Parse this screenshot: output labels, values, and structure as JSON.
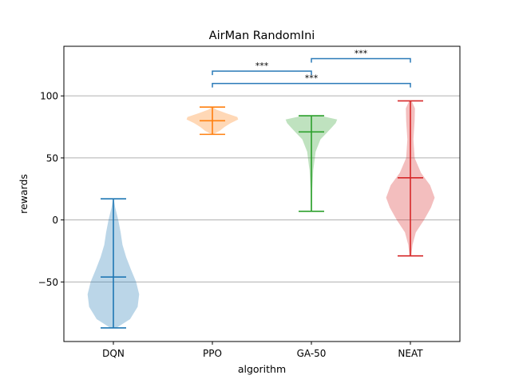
{
  "chart_data": {
    "type": "violin",
    "title": "AirMan RandomIni",
    "xlabel": "algorithm",
    "ylabel": "rewards",
    "ylim": [
      -98,
      140
    ],
    "yticks": [
      -50,
      0,
      50,
      100
    ],
    "grid": "y",
    "categories": [
      "DQN",
      "PPO",
      "GA-50",
      "NEAT"
    ],
    "colors": [
      "#1f77b4",
      "#ff7f0e",
      "#2ca02c",
      "#d62728"
    ],
    "series": [
      {
        "min": -87,
        "max": 17,
        "median": -46,
        "profile": [
          [
            -87,
            0.1
          ],
          [
            -80,
            0.55
          ],
          [
            -70,
            0.8
          ],
          [
            -60,
            0.85
          ],
          [
            -50,
            0.75
          ],
          [
            -40,
            0.58
          ],
          [
            -30,
            0.42
          ],
          [
            -20,
            0.3
          ],
          [
            -10,
            0.24
          ],
          [
            0,
            0.16
          ],
          [
            10,
            0.06
          ],
          [
            17,
            0.01
          ]
        ]
      },
      {
        "min": 69,
        "max": 91,
        "median": 80,
        "profile": [
          [
            69,
            0.02
          ],
          [
            72,
            0.25
          ],
          [
            75,
            0.4
          ],
          [
            78,
            0.6
          ],
          [
            81,
            0.85
          ],
          [
            83,
            0.82
          ],
          [
            86,
            0.45
          ],
          [
            89,
            0.12
          ],
          [
            91,
            0.03
          ]
        ]
      },
      {
        "min": 7,
        "max": 84,
        "median": 71,
        "profile": [
          [
            7,
            0.02
          ],
          [
            25,
            0.03
          ],
          [
            40,
            0.06
          ],
          [
            55,
            0.14
          ],
          [
            65,
            0.3
          ],
          [
            70,
            0.5
          ],
          [
            74,
            0.65
          ],
          [
            78,
            0.8
          ],
          [
            81,
            0.85
          ],
          [
            84,
            0.3
          ]
        ]
      },
      {
        "min": -29,
        "max": 96,
        "median": 34,
        "profile": [
          [
            -29,
            0.03
          ],
          [
            -20,
            0.07
          ],
          [
            -10,
            0.18
          ],
          [
            0,
            0.45
          ],
          [
            10,
            0.68
          ],
          [
            18,
            0.8
          ],
          [
            28,
            0.65
          ],
          [
            38,
            0.35
          ],
          [
            50,
            0.14
          ],
          [
            65,
            0.1
          ],
          [
            80,
            0.14
          ],
          [
            90,
            0.15
          ],
          [
            96,
            0.04
          ]
        ]
      }
    ],
    "significance": [
      {
        "from": "PPO",
        "to": "GA-50",
        "level": 120,
        "label": "***"
      },
      {
        "from": "GA-50",
        "to": "NEAT",
        "level": 130,
        "label": "***"
      },
      {
        "from": "PPO",
        "to": "NEAT",
        "level": 110,
        "label": "***"
      }
    ]
  }
}
